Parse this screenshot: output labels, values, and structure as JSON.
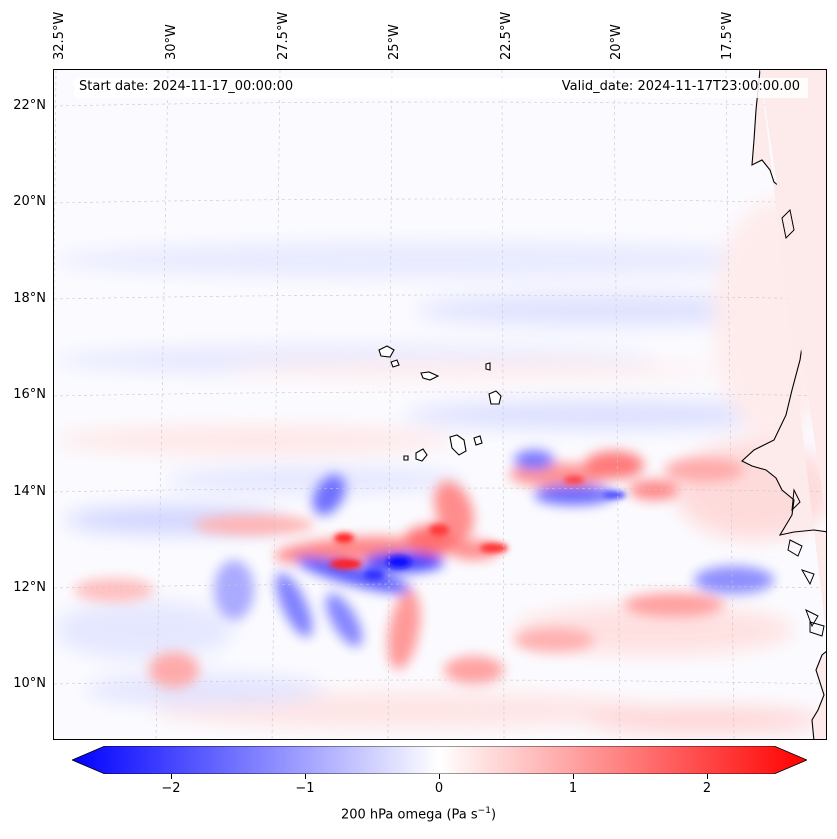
{
  "map": {
    "type": "contour map",
    "lon_labels": [
      "32.5°W",
      "30°W",
      "27.5°W",
      "25°W",
      "22.5°W",
      "20°W",
      "17.5°W"
    ],
    "lat_labels": [
      "22°N",
      "20°N",
      "18°N",
      "16°N",
      "14°N",
      "12°N",
      "10°N"
    ],
    "start_date": "Start date: 2024-11-17_00:00:00",
    "valid_date": "Valid_date: 2024-11-17T23:00:00.00",
    "colormap": "bwr",
    "colors": {
      "negative": "#0000ff",
      "zero": "#ffffff",
      "positive": "#ff0000",
      "coast": "#000000"
    }
  },
  "colorbar": {
    "ticks": [
      "−2",
      "−1",
      "0",
      "1",
      "2"
    ],
    "range": [
      -2.5,
      2.5
    ],
    "label_main": "200 hPa omega (Pa s",
    "label_sup": "−1",
    "label_end": ")"
  }
}
